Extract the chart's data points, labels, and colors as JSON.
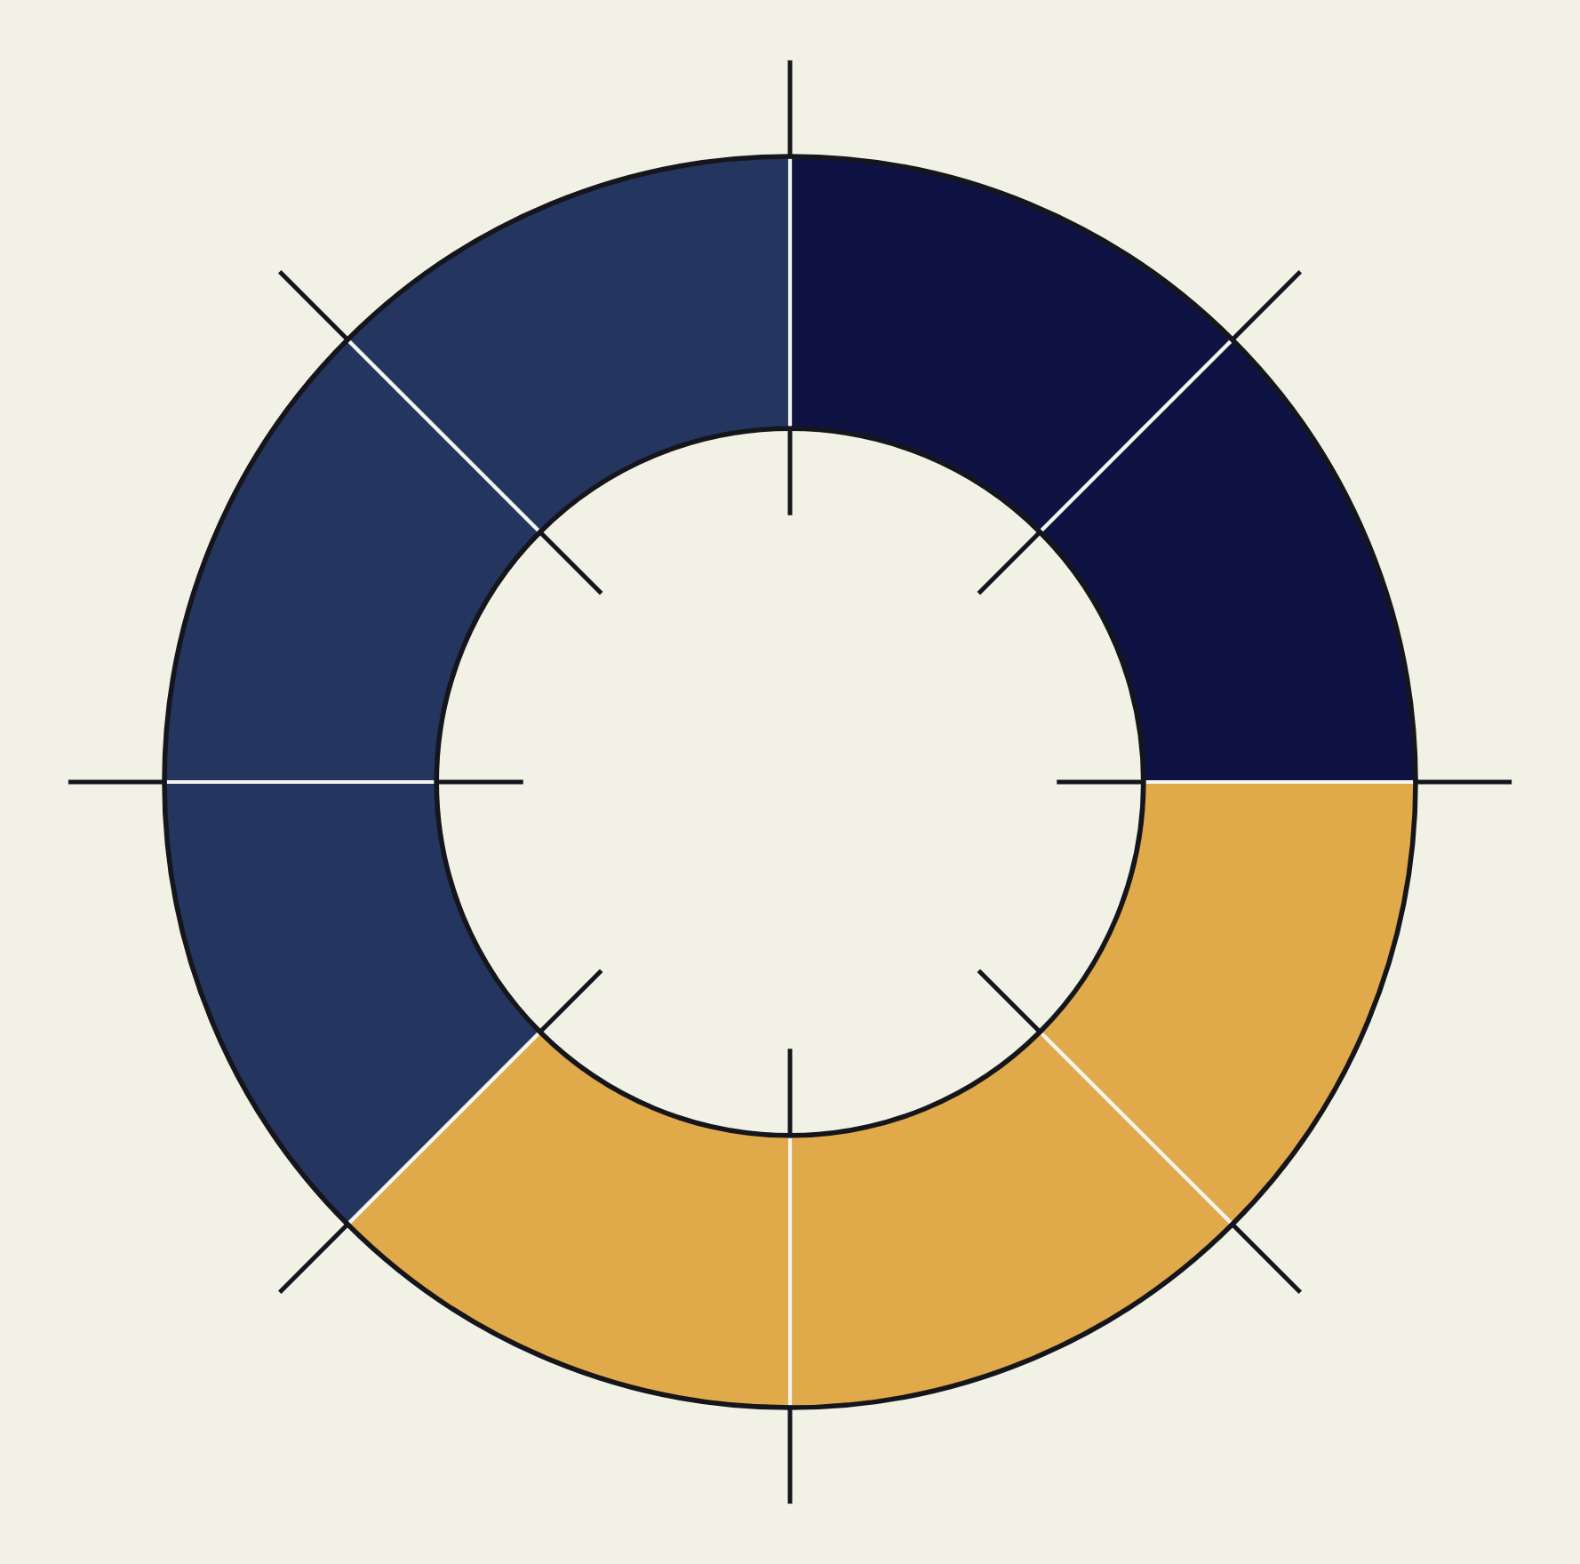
{
  "chart_data": {
    "type": "donut",
    "categories": [
      null,
      null,
      null,
      null,
      null,
      null,
      null,
      null
    ],
    "values": [
      12.5,
      12.5,
      12.5,
      12.5,
      12.5,
      12.5,
      12.5,
      12.5
    ],
    "colors": [
      "#0e1343",
      "#0e1343",
      "#e0a94a",
      "#e0a94a",
      "#e0a94a",
      "#24365f",
      "#24365f",
      "#24365f"
    ]
  }
}
